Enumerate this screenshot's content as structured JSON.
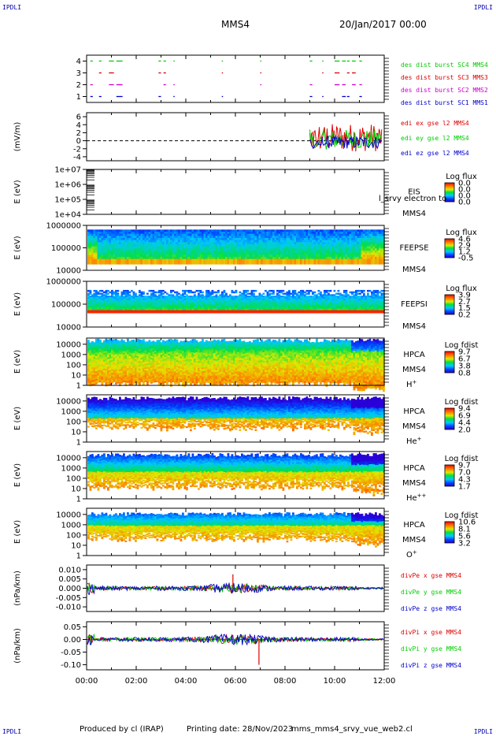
{
  "header": {
    "corner_left_top": "IPDLI",
    "corner_right_top": "IPDLI",
    "corner_left_bottom": "IPDLI",
    "corner_right_bottom": "IPDLI",
    "spacecraft": "MMS4",
    "date": "20/Jan/2017 00:00"
  },
  "footer": {
    "produced_by": "Produced by cl (IRAP)",
    "printing_date": "Printing date: 28/Nov/2023",
    "script": "mms_mms4_srvy_vue_web2.cl"
  },
  "colors": {
    "red": "#dd0000",
    "green": "#00cc00",
    "blue": "#0000cc",
    "magenta": "#cc00cc",
    "black": "#000000"
  },
  "chart_data": [
    {
      "type": "line",
      "id": "dist-burst",
      "xlabel": "",
      "ylabel": "",
      "yticks": [
        "1",
        "2",
        "3",
        "4"
      ],
      "ylim": [
        0.5,
        4.5
      ],
      "series": [
        {
          "name": "des dist burst SC1 MMS1",
          "color": "#0000cc",
          "level": 1
        },
        {
          "name": "des dist burst SC2 MMS2",
          "color": "#cc00cc",
          "level": 2
        },
        {
          "name": "des dist burst SC3 MMS3",
          "color": "#dd0000",
          "level": 3
        },
        {
          "name": "des dist burst SC4 MMS4",
          "color": "#00cc00",
          "level": 4
        }
      ],
      "intervals_hours": [
        [
          0.15,
          0.25
        ],
        [
          0.5,
          0.6
        ],
        [
          0.9,
          1.1
        ],
        [
          1.2,
          1.45
        ],
        [
          2.9,
          3.0
        ],
        [
          3.1,
          3.2
        ],
        [
          3.5,
          3.55
        ],
        [
          5.45,
          5.5
        ],
        [
          7.0,
          7.05
        ],
        [
          9.0,
          9.1
        ],
        [
          9.5,
          9.55
        ],
        [
          10.0,
          10.2
        ],
        [
          10.3,
          10.45
        ],
        [
          10.5,
          10.6
        ],
        [
          10.7,
          10.85
        ],
        [
          11.0,
          11.1
        ]
      ]
    },
    {
      "type": "line",
      "id": "edi-e",
      "ylabel": "(mV/m)",
      "yticks": [
        "6",
        "4",
        "2",
        "0",
        "-2",
        "-4"
      ],
      "ylim": [
        -5,
        7
      ],
      "series": [
        {
          "name": "edi ex gse l2 MMS4",
          "color": "#dd0000"
        },
        {
          "name": "edi ey gse l2 MMS4",
          "color": "#00cc00"
        },
        {
          "name": "edi ez gse l2 MMS4",
          "color": "#0000cc"
        }
      ],
      "data_range_hours": [
        9.0,
        11.9
      ]
    },
    {
      "type": "heatmap",
      "id": "eis",
      "ylabel": "E (eV)",
      "yscale": "log",
      "yticks": [
        "1e+07",
        "1e+06",
        "1e+05",
        "1e+04"
      ],
      "ylim": [
        10000,
        10000000
      ],
      "labels": [
        "EIS",
        "MMS4"
      ],
      "overlay_text": "l_srvy electron to",
      "colorbar": {
        "title": "Log flux",
        "ticks": [
          "0.0",
          "0.0",
          "0.0",
          "0.0"
        ]
      }
    },
    {
      "type": "heatmap",
      "id": "feepse",
      "ylabel": "E (eV)",
      "yscale": "log",
      "yticks": [
        "1000000",
        "100000",
        "10000"
      ],
      "ylim": [
        10000,
        1000000
      ],
      "labels": [
        "FEEPSE",
        "MMS4"
      ],
      "colorbar": {
        "title": "Log flux",
        "ticks": [
          "4.6",
          "2.9",
          "1.2",
          "-0.5"
        ]
      }
    },
    {
      "type": "heatmap",
      "id": "feepsi",
      "ylabel": "E (eV)",
      "yscale": "log",
      "yticks": [
        "1000000",
        "100000",
        "10000"
      ],
      "ylim": [
        10000,
        1000000
      ],
      "labels": [
        "FEEPSI",
        "MMS4"
      ],
      "colorbar": {
        "title": "Log flux",
        "ticks": [
          "3.9",
          "2.7",
          "1.5",
          "0.2"
        ]
      }
    },
    {
      "type": "heatmap",
      "id": "hpca-h",
      "ylabel": "E (eV)",
      "yscale": "log",
      "yticks": [
        "10000",
        "1000",
        "100",
        "10",
        "1"
      ],
      "ylim": [
        1,
        40000
      ],
      "labels": [
        "HPCA",
        "MMS4",
        "H+"
      ],
      "colorbar": {
        "title": "Log fdist",
        "ticks": [
          "9.7",
          "6.7",
          "3.8",
          "0.8"
        ]
      }
    },
    {
      "type": "heatmap",
      "id": "hpca-he",
      "ylabel": "E (eV)",
      "yscale": "log",
      "yticks": [
        "10000",
        "1000",
        "100",
        "10",
        "1"
      ],
      "ylim": [
        1,
        40000
      ],
      "labels": [
        "HPCA",
        "MMS4",
        "He+"
      ],
      "colorbar": {
        "title": "Log fdist",
        "ticks": [
          "9.4",
          "6.9",
          "4.4",
          "2.0"
        ]
      }
    },
    {
      "type": "heatmap",
      "id": "hpca-hepp",
      "ylabel": "E (eV)",
      "yscale": "log",
      "yticks": [
        "10000",
        "1000",
        "100",
        "10",
        "1"
      ],
      "ylim": [
        1,
        40000
      ],
      "labels": [
        "HPCA",
        "MMS4",
        "He++"
      ],
      "colorbar": {
        "title": "Log fdist",
        "ticks": [
          "9.7",
          "7.0",
          "4.3",
          "1.7"
        ]
      }
    },
    {
      "type": "heatmap",
      "id": "hpca-o",
      "ylabel": "E (eV)",
      "yscale": "log",
      "yticks": [
        "10000",
        "1000",
        "100",
        "10",
        "1"
      ],
      "ylim": [
        1,
        40000
      ],
      "labels": [
        "HPCA",
        "MMS4",
        "O+"
      ],
      "colorbar": {
        "title": "Log fdist",
        "ticks": [
          "10.6",
          "8.1",
          "5.6",
          "3.2"
        ]
      }
    },
    {
      "type": "line",
      "id": "divpe",
      "ylabel": "(nPa/km)",
      "yticks": [
        "0.010",
        "0.005",
        "0.000",
        "-0.005",
        "-0.010"
      ],
      "ylim": [
        -0.0125,
        0.0125
      ],
      "series": [
        {
          "name": "divPe x gse MMS4",
          "color": "#dd0000"
        },
        {
          "name": "divPe y gse MMS4",
          "color": "#00cc00"
        },
        {
          "name": "divPe z gse MMS4",
          "color": "#0000cc"
        }
      ]
    },
    {
      "type": "line",
      "id": "divpi",
      "ylabel": "(nPa/km)",
      "yticks": [
        "0.05",
        "0.00",
        "-0.05",
        "-0.10"
      ],
      "ylim": [
        -0.12,
        0.07
      ],
      "series": [
        {
          "name": "divPi x gse MMS4",
          "color": "#dd0000"
        },
        {
          "name": "divPi y gse MMS4",
          "color": "#00cc00"
        },
        {
          "name": "divPi z gse MMS4",
          "color": "#0000cc"
        }
      ]
    }
  ],
  "xaxis": {
    "ticks": [
      "00:00",
      "02:00",
      "04:00",
      "06:00",
      "08:00",
      "10:00",
      "12:00"
    ],
    "range_hours": [
      0,
      12
    ]
  }
}
